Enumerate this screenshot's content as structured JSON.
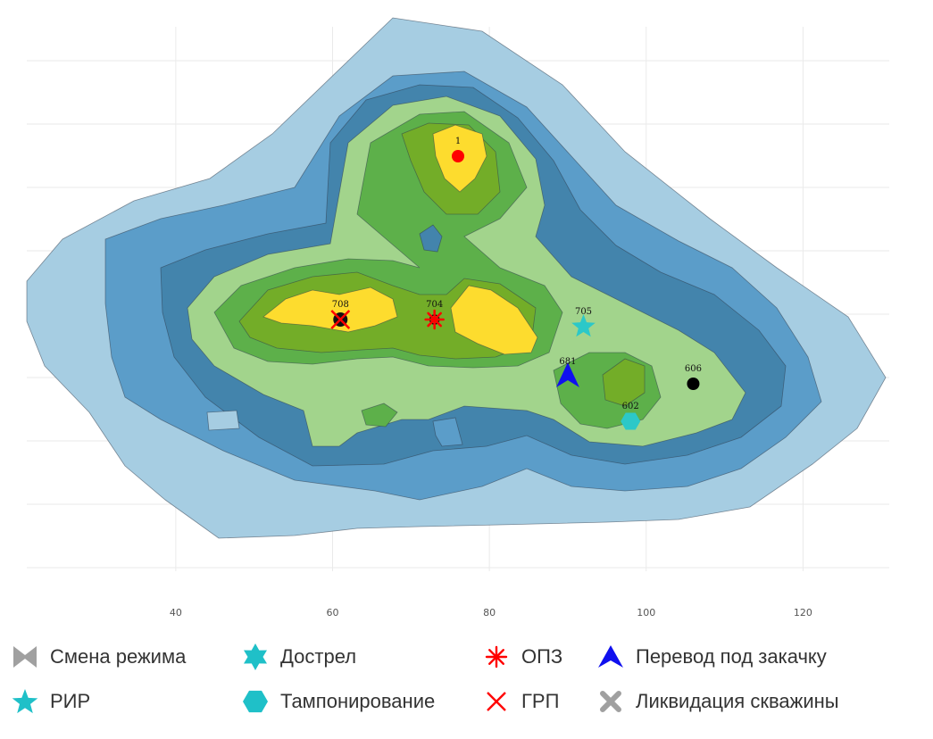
{
  "chart_data": {
    "type": "contour",
    "title": "",
    "xlabel": "",
    "ylabel": "",
    "xlim": [
      21,
      131
    ],
    "x_ticks": [
      40,
      60,
      80,
      100,
      120
    ],
    "grid": true,
    "contour_fill_colors": [
      "#a6cde2",
      "#5b9dc9",
      "#4384ac",
      "#a2d48c",
      "#5db04a",
      "#73ad28",
      "#fddc2e"
    ],
    "wells": [
      {
        "label": "1",
        "x": 76,
        "marker": "ОПЗ-circle",
        "color": "#ff0000"
      },
      {
        "label": "708",
        "x": 61,
        "marker": "ГРП+Ликвидация",
        "color": "#ff0000"
      },
      {
        "label": "704",
        "x": 73,
        "marker": "ОПЗ",
        "color": "#ff0000"
      },
      {
        "label": "705",
        "x": 92,
        "marker": "РИР",
        "color": "#2cc8c8"
      },
      {
        "label": "681",
        "x": 90,
        "marker": "Перевод под закачку",
        "color": "#1010ee"
      },
      {
        "label": "606",
        "x": 106,
        "marker": "circle",
        "color": "#000000"
      },
      {
        "label": "602",
        "x": 98,
        "marker": "Тампонирование",
        "color": "#2cc8c8"
      }
    ]
  },
  "legend": [
    {
      "label": "Смена режима",
      "icon": "bowtie-icon",
      "color": "#a0a0a0"
    },
    {
      "label": "Дострел",
      "icon": "star6-icon",
      "color": "#1fc0c8"
    },
    {
      "label": "ОПЗ",
      "icon": "asterisk-icon",
      "color": "#ff0000"
    },
    {
      "label": "Перевод под закачку",
      "icon": "arrowhead-icon",
      "color": "#1010ee"
    },
    {
      "label": "РИР",
      "icon": "star5-icon",
      "color": "#1fc0c8"
    },
    {
      "label": "Тампонирование",
      "icon": "hexagon-icon",
      "color": "#1fc0c8"
    },
    {
      "label": "ГРП",
      "icon": "x-cross-icon",
      "color": "#ff0000"
    },
    {
      "label": "Ликвидация скважины",
      "icon": "x-thick-icon",
      "color": "#a0a0a0"
    }
  ]
}
